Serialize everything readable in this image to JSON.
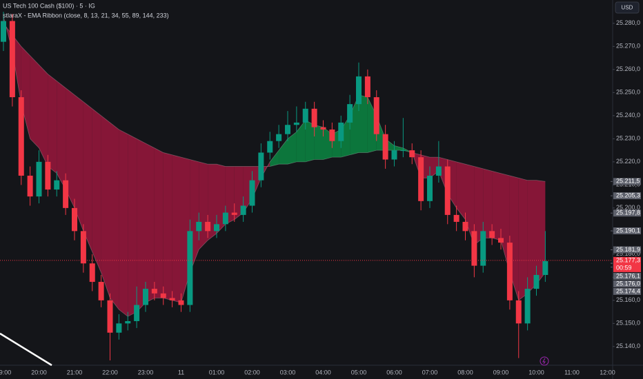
{
  "chart_data": {
    "type": "candlestick",
    "title": "US Tech 100 Cash ($100) · 5 · IG",
    "subtitle": "stlaraX - EMA Ribbon (close, 8, 13, 21, 34, 55, 89, 144, 233)",
    "currency": "USD",
    "countdown": "00:59",
    "categories": [
      "19:00",
      "20:00",
      "21:00",
      "22:00",
      "23:00",
      "11",
      "01:00",
      "02:00",
      "03:00",
      "04:00",
      "05:00",
      "06:00",
      "07:00",
      "08:00",
      "09:00",
      "10:00",
      "11:00",
      "12:00"
    ],
    "open": [
      25272,
      25281,
      25248,
      25214,
      25205,
      25220,
      25208,
      25212,
      25200,
      25190,
      25176,
      25168,
      25160,
      25146,
      25150,
      25151,
      25158,
      25165,
      25163,
      25161,
      25160,
      25158,
      25190,
      25194,
      25190,
      25193,
      25198,
      25197,
      25201,
      25212,
      25224,
      25229,
      25232,
      25236,
      25237,
      25243,
      25235,
      25234,
      25229,
      25237,
      25245,
      25257,
      25248,
      25232,
      25221,
      25225,
      25225,
      25222,
      25203,
      25214,
      25218,
      25197,
      25194,
      25190,
      25175,
      25190,
      25187,
      25185,
      25160,
      25150,
      25165,
      25171
    ],
    "high": [
      25285,
      25284,
      25251,
      25218,
      25225,
      25223,
      25216,
      25215,
      25204,
      25193,
      25180,
      25171,
      25163,
      25154,
      25155,
      25166,
      25168,
      25168,
      25166,
      25164,
      25163,
      25195,
      25198,
      25197,
      25197,
      25201,
      25202,
      25205,
      25216,
      25228,
      25233,
      25236,
      25242,
      25244,
      25246,
      25246,
      25238,
      25237,
      25240,
      25249,
      25263,
      25260,
      25251,
      25236,
      25229,
      25239,
      25228,
      25225,
      25218,
      25229,
      25221,
      25201,
      25198,
      25193,
      25194,
      25193,
      25191,
      25188,
      25164,
      25170,
      25175,
      25190
    ],
    "low": [
      25268,
      25244,
      25210,
      25201,
      25202,
      25205,
      25205,
      25197,
      25186,
      25172,
      25164,
      25157,
      25134,
      25143,
      25147,
      25148,
      25155,
      25160,
      25158,
      25157,
      25155,
      25155,
      25186,
      25187,
      25187,
      25190,
      25194,
      25194,
      25198,
      25209,
      25221,
      25226,
      25229,
      25233,
      25234,
      25231,
      25231,
      25226,
      25226,
      25234,
      25242,
      25245,
      25229,
      25217,
      25218,
      25222,
      25219,
      25199,
      25200,
      25211,
      25193,
      25190,
      25186,
      25170,
      25172,
      25184,
      25182,
      25156,
      25135,
      25147,
      25162,
      25168
    ],
    "close": [
      25281,
      25248,
      25214,
      25205,
      25220,
      25208,
      25212,
      25200,
      25190,
      25176,
      25168,
      25160,
      25146,
      25150,
      25151,
      25158,
      25165,
      25163,
      25161,
      25160,
      25158,
      25190,
      25194,
      25190,
      25193,
      25198,
      25197,
      25201,
      25212,
      25224,
      25229,
      25232,
      25236,
      25237,
      25243,
      25235,
      25234,
      25229,
      25237,
      25245,
      25257,
      25248,
      25232,
      25221,
      25225,
      25225,
      25222,
      25203,
      25214,
      25218,
      25197,
      25194,
      25190,
      25175,
      25190,
      25187,
      25185,
      25160,
      25150,
      25165,
      25171,
      25177
    ],
    "ema_fast": [
      25283,
      25268,
      25245,
      25230,
      25226,
      25218,
      25215,
      25208,
      25200,
      25190,
      25181,
      25172,
      25161,
      25156,
      25153,
      25155,
      25159,
      25161,
      25161,
      25160,
      25159,
      25172,
      25182,
      25186,
      25189,
      25193,
      25195,
      25198,
      25204,
      25213,
      25220,
      25225,
      25230,
      25233,
      25238,
      25236,
      25235,
      25232,
      25234,
      25240,
      25249,
      25248,
      25240,
      25230,
      25227,
      25226,
      25224,
      25213,
      25213,
      25216,
      25206,
      25200,
      25195,
      25184,
      25187,
      25187,
      25186,
      25172,
      25160,
      25163,
      25167,
      25172
    ],
    "ema_slow": [
      25280,
      25275,
      25270,
      25266,
      25262,
      25258,
      25255,
      25252,
      25249,
      25246,
      25243,
      25240,
      25237,
      25234,
      25232,
      25230,
      25228,
      25226,
      25224,
      25223,
      25222,
      25221,
      25220,
      25219,
      25219,
      25218,
      25218,
      25218,
      25218,
      25218,
      25218,
      25219,
      25219,
      25220,
      25220,
      25221,
      25221,
      25222,
      25222,
      25223,
      25224,
      25224,
      25225,
      25225,
      25225,
      25225,
      25224,
      25223,
      25222,
      25222,
      25221,
      25220,
      25219,
      25218,
      25217,
      25216,
      25215,
      25214,
      25213,
      25212,
      25212,
      25211.5
    ],
    "up_color": "#089981",
    "down_color": "#f23645",
    "ribbon_up_color": "#0a8f45",
    "ribbon_down_color": "#a3173e",
    "ylim": [
      25131.9,
      25290.1
    ],
    "yticks": [
      {
        "value": 25140,
        "label": "25.140,0"
      },
      {
        "value": 25150,
        "label": "25.150,0"
      },
      {
        "value": 25160,
        "label": "25.160,0"
      },
      {
        "value": 25170,
        "label": "25.170,0"
      },
      {
        "value": 25180,
        "label": "25.180,0"
      },
      {
        "value": 25190,
        "label": "25.190,0"
      },
      {
        "value": 25200,
        "label": "25.200,0"
      },
      {
        "value": 25210,
        "label": "25.210,0"
      },
      {
        "value": 25220,
        "label": "25.220,0"
      },
      {
        "value": 25230,
        "label": "25.230,0"
      },
      {
        "value": 25240,
        "label": "25.240,0"
      },
      {
        "value": 25250,
        "label": "25.250,0"
      },
      {
        "value": 25260,
        "label": "25.260,0"
      },
      {
        "value": 25270,
        "label": "25.270,0"
      },
      {
        "value": 25280,
        "label": "25.280,0"
      }
    ],
    "price_labels": [
      {
        "value": 25211.5,
        "label": "25.211,5",
        "color": "#5d606b"
      },
      {
        "value": 25205.3,
        "label": "25.205,3",
        "color": "#5d606b"
      },
      {
        "value": 25197.8,
        "label": "25.197,8",
        "color": "#5d606b"
      },
      {
        "value": 25190.1,
        "label": "25.190,1",
        "color": "#5d606b"
      },
      {
        "value": 25181.9,
        "label": "25.181,9",
        "color": "#5d606b"
      },
      {
        "value": 25177.3,
        "label": "25.177,3",
        "color": "#f23645"
      },
      {
        "value": 25176.1,
        "label": "25.176,1",
        "color": "#5d606b"
      },
      {
        "value": 25176.0,
        "label": "25.176,0",
        "color": "#5d606b"
      },
      {
        "value": 25174.4,
        "label": "25.174,4",
        "color": "#5d606b"
      }
    ]
  }
}
